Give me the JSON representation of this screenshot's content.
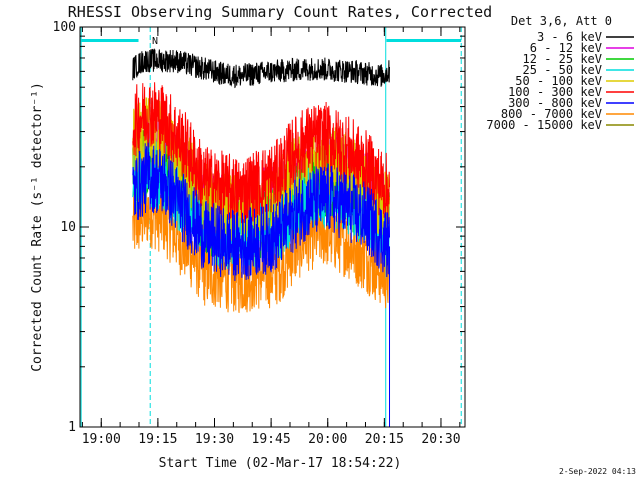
{
  "chart_data": {
    "type": "line",
    "title": "RHESSI Observing Summary Count Rates, Corrected",
    "xlabel": "Start Time (02-Mar-17 18:54:22)",
    "ylabel": "Corrected Count Rate (s⁻¹ detector⁻¹)",
    "y_scale": "log",
    "ylim": [
      1,
      100
    ],
    "xlim_minutes_after_18_54_22": [
      0,
      102
    ],
    "x_tick_labels": [
      "19:00",
      "19:15",
      "19:30",
      "19:45",
      "20:00",
      "20:15",
      "20:30"
    ],
    "y_tick_labels": [
      "1",
      "10",
      "100"
    ],
    "legend_title": "Det 3,6, Att 0",
    "legend_position": "right",
    "series": [
      {
        "name": "3 - 6 keV",
        "color": "#000000",
        "points": [
          [
            14,
            62
          ],
          [
            17,
            68
          ],
          [
            25,
            68
          ],
          [
            30,
            64
          ],
          [
            38,
            58
          ],
          [
            42,
            57
          ],
          [
            52,
            60
          ],
          [
            62,
            62
          ],
          [
            72,
            60
          ],
          [
            80,
            57
          ],
          [
            82,
            60
          ]
        ]
      },
      {
        "name": "6 - 12 keV",
        "color": "#dd00dd",
        "points": [
          [
            14,
            22
          ],
          [
            18,
            26
          ],
          [
            22,
            24
          ],
          [
            28,
            18
          ],
          [
            33,
            13
          ],
          [
            42,
            12
          ],
          [
            52,
            14
          ],
          [
            56,
            17
          ],
          [
            60,
            20
          ],
          [
            65,
            21
          ],
          [
            70,
            19
          ],
          [
            76,
            16
          ],
          [
            82,
            12
          ]
        ]
      },
      {
        "name": "12 - 25 keV",
        "color": "#00cc00",
        "points": [
          [
            14,
            19
          ],
          [
            18,
            22
          ],
          [
            22,
            20
          ],
          [
            28,
            15
          ],
          [
            33,
            11
          ],
          [
            42,
            10
          ],
          [
            52,
            11
          ],
          [
            56,
            14
          ],
          [
            60,
            16
          ],
          [
            65,
            17
          ],
          [
            70,
            15
          ],
          [
            76,
            13
          ],
          [
            82,
            10
          ]
        ]
      },
      {
        "name": "25 - 50 keV",
        "color": "#00dddd",
        "points": [
          [
            14,
            17
          ],
          [
            18,
            19
          ],
          [
            22,
            18
          ],
          [
            28,
            13
          ],
          [
            33,
            10
          ],
          [
            42,
            9
          ],
          [
            52,
            10
          ],
          [
            56,
            12
          ],
          [
            60,
            14
          ],
          [
            65,
            15
          ],
          [
            70,
            14
          ],
          [
            76,
            12
          ],
          [
            82,
            9
          ]
        ]
      },
      {
        "name": "50 - 100 keV",
        "color": "#ddcc00",
        "points": [
          [
            14,
            26
          ],
          [
            18,
            30
          ],
          [
            22,
            28
          ],
          [
            28,
            20
          ],
          [
            33,
            14
          ],
          [
            42,
            12
          ],
          [
            52,
            14
          ],
          [
            56,
            18
          ],
          [
            60,
            21
          ],
          [
            65,
            22
          ],
          [
            70,
            20
          ],
          [
            76,
            16
          ],
          [
            82,
            12
          ]
        ]
      },
      {
        "name": "100 - 300 keV",
        "color": "#ff0000",
        "points": [
          [
            14,
            33
          ],
          [
            18,
            38
          ],
          [
            22,
            35
          ],
          [
            28,
            25
          ],
          [
            33,
            17
          ],
          [
            42,
            15
          ],
          [
            52,
            18
          ],
          [
            56,
            23
          ],
          [
            60,
            27
          ],
          [
            65,
            28
          ],
          [
            70,
            25
          ],
          [
            76,
            20
          ],
          [
            82,
            15
          ]
        ]
      },
      {
        "name": "300 - 800 keV",
        "color": "#0000ff",
        "points": [
          [
            14,
            15
          ],
          [
            18,
            18
          ],
          [
            22,
            17
          ],
          [
            28,
            12
          ],
          [
            33,
            9
          ],
          [
            42,
            8
          ],
          [
            52,
            9
          ],
          [
            56,
            11
          ],
          [
            60,
            13
          ],
          [
            65,
            14
          ],
          [
            70,
            13
          ],
          [
            76,
            11
          ],
          [
            82,
            8
          ]
        ]
      },
      {
        "name": "800 - 7000 keV",
        "color": "#ff8800",
        "points": [
          [
            14,
            10
          ],
          [
            18,
            12
          ],
          [
            22,
            11
          ],
          [
            28,
            8
          ],
          [
            33,
            6
          ],
          [
            42,
            5.5
          ],
          [
            52,
            6
          ],
          [
            56,
            7.5
          ],
          [
            60,
            9
          ],
          [
            65,
            9.5
          ],
          [
            70,
            8.5
          ],
          [
            76,
            7
          ],
          [
            82,
            5.5
          ]
        ]
      },
      {
        "name": "7000 - 15000 keV",
        "color": "#888800",
        "points": []
      }
    ],
    "annotations": [
      {
        "text": "N",
        "x": 18
      }
    ],
    "footer_date": "2-Sep-2022 04:13"
  }
}
